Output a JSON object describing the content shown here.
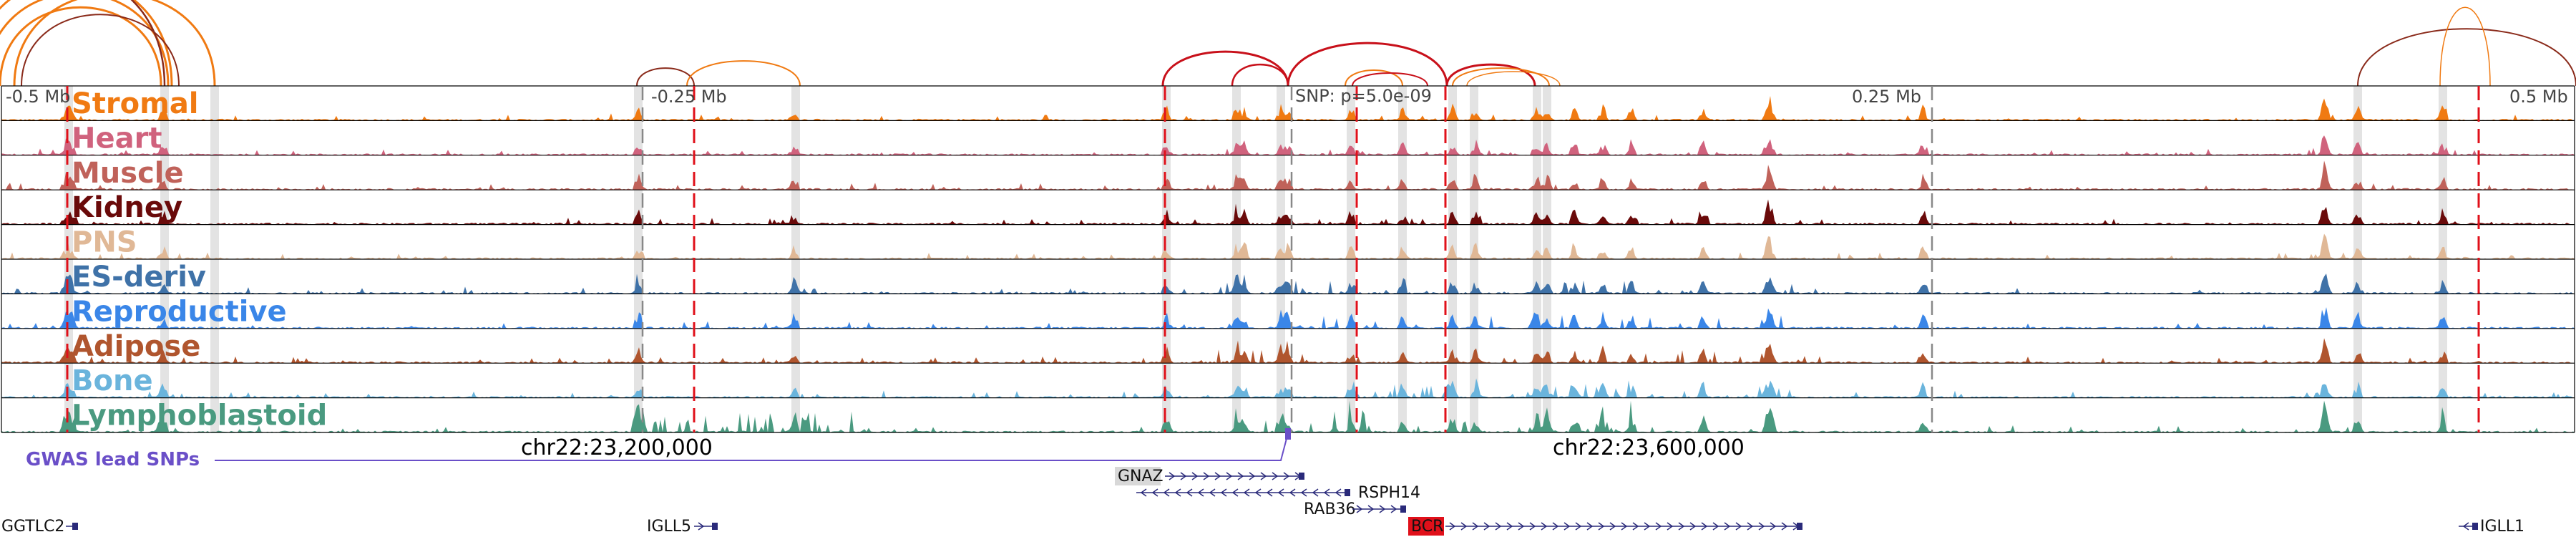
{
  "axis": {
    "ticks": [
      "-0.5 Mb",
      "-0.25 Mb",
      "0.25 Mb",
      "0.5 Mb"
    ],
    "snp_note": "SNP: p=5.0e-09",
    "coords": [
      "chr22:23,200,000",
      "chr22:23,600,000"
    ]
  },
  "tracks": [
    {
      "name": "Stromal",
      "color": "#f07a12"
    },
    {
      "name": "Heart",
      "color": "#d0627d"
    },
    {
      "name": "Muscle",
      "color": "#c0625a"
    },
    {
      "name": "Kidney",
      "color": "#6a0a0a"
    },
    {
      "name": "PNS",
      "color": "#e0b896"
    },
    {
      "name": "ES-deriv",
      "color": "#3f72a8"
    },
    {
      "name": "Reproductive",
      "color": "#3a86e8"
    },
    {
      "name": "Adipose",
      "color": "#b0552e"
    },
    {
      "name": "Bone",
      "color": "#6ab4dc"
    },
    {
      "name": "Lymphoblastoid",
      "color": "#4a9a80"
    }
  ],
  "gwas": {
    "label": "GWAS lead SNPs",
    "color": "#6a4fc8"
  },
  "genes": [
    {
      "name": "GNAZ",
      "strand": "+",
      "highlight": "#d8d8d8",
      "label_fill": "#111111"
    },
    {
      "name": "RSPH14",
      "strand": "-",
      "highlight": "",
      "label_fill": "#111111"
    },
    {
      "name": "RAB36",
      "strand": "+",
      "highlight": "",
      "label_fill": "#111111"
    },
    {
      "name": "BCR",
      "strand": "+",
      "highlight": "#e0101a",
      "label_fill": "#ffffff"
    },
    {
      "name": "GGTLC2",
      "strand": "+",
      "highlight": "",
      "label_fill": "#111111"
    },
    {
      "name": "IGLL5",
      "strand": "+",
      "highlight": "",
      "label_fill": "#111111"
    },
    {
      "name": "IGLL1",
      "strand": "-",
      "highlight": "",
      "label_fill": "#111111"
    }
  ],
  "colors": {
    "red_dash": "#e0101a",
    "gray_dash": "#888888",
    "highlight_band": "#d9d9d9",
    "loop_orange": "#f07a12",
    "loop_red": "#c8101a",
    "loop_brown": "#8a2a1a"
  }
}
